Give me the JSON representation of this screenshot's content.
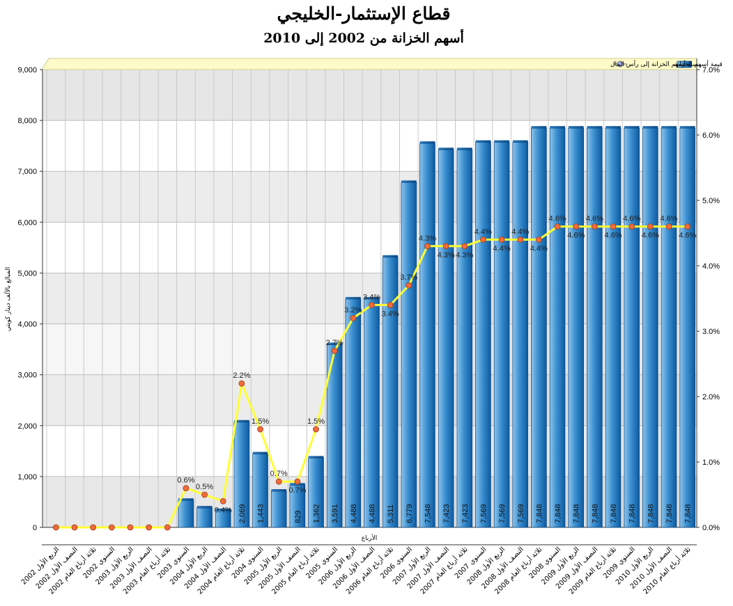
{
  "chart_data": {
    "type": "bar",
    "title": "قطاع الإستثمار-الخليجي",
    "subtitle": "أسهم الخزانة من 2002 إلى 2010",
    "xlabel": "الأرباع",
    "ylabel": "المبالغ بالألف دينار كويتي",
    "ylim": [
      0,
      9000
    ],
    "y2lim": [
      0,
      7.0
    ],
    "y_ticks": [
      "0",
      "1,000",
      "2,000",
      "3,000",
      "4,000",
      "5,000",
      "6,000",
      "7,000",
      "8,000",
      "9,000"
    ],
    "y2_ticks": [
      "0.0%",
      "1.0%",
      "2.0%",
      "3.0%",
      "4.0%",
      "5.0%",
      "6.0%",
      "7.0%"
    ],
    "grid": true,
    "legend_position": "top-right",
    "categories": [
      "الربع الأول 2002",
      "النصف الأول 2002",
      "ثلاثة أرباع العام 2002",
      "السنوي 2002",
      "الربع الأول 2003",
      "النصف الأول 2003",
      "ثلاثة أرباع العام 2003",
      "السنوي 2003",
      "الربع الأول 2004",
      "النصف الأول 2004",
      "ثلاثة أرباع العام 2004",
      "السنوي 2004",
      "الربع الأول 2005",
      "النصف الأول 2005",
      "ثلاثة أرباع العام 2005",
      "السنوي 2005",
      "الربع الأول 2006",
      "النصف الأول 2006",
      "ثلاثة أرباع العام 2006",
      "السنوي 2006",
      "الربع الأول 2007",
      "النصف الأول 2007",
      "ثلاثة أرباع العام 2007",
      "السنوي 2007",
      "الربع الأول 2008",
      "النصف الأول 2008",
      "ثلاثة أرباع العام 2008",
      "السنوي 2008",
      "الربع الأول 2009",
      "النصف الأول 2009",
      "ثلاثة أرباع العام 2009",
      "السنوي 2009",
      "الربع الأول 2010",
      "النصف الأول 2010",
      "ثلاثة أرباع العام 2010"
    ],
    "series": [
      {
        "name": "قيمة أسهم الخزانة",
        "type": "bar",
        "axis": "left",
        "color": "#1f6fb5",
        "values": [
          0,
          0,
          0,
          0,
          0,
          0,
          0,
          530,
          380,
          330,
          2069,
          1443,
          710,
          829,
          1362,
          3591,
          4488,
          4488,
          5311,
          6779,
          7548,
          7423,
          7423,
          7569,
          7569,
          7569,
          7848,
          7848,
          7848,
          7848,
          7848,
          7848,
          7848,
          7848,
          7848
        ],
        "labels": [
          "",
          "",
          "",
          "",
          "",
          "",
          "",
          "",
          "",
          "",
          "2,069",
          "1,443",
          "",
          "829",
          "1,362",
          "3,591",
          "4,488",
          "4,488",
          "5,311",
          "6,779",
          "7,548",
          "7,423",
          "7,423",
          "7,569",
          "7,569",
          "7,569",
          "7,848",
          "7,848",
          "7,848",
          "7,848",
          "7,848",
          "7,848",
          "7,848",
          "7,848",
          "7,848"
        ]
      },
      {
        "name": "نسبة أسهم الخزانة إلى رأس المال",
        "type": "line",
        "axis": "right",
        "color": "#ffff33",
        "values": [
          0,
          0,
          0,
          0,
          0,
          0,
          0,
          0.6,
          0.5,
          0.4,
          2.2,
          1.5,
          0.7,
          0.7,
          1.5,
          2.7,
          3.2,
          3.4,
          3.4,
          3.7,
          4.3,
          4.3,
          4.3,
          4.4,
          4.4,
          4.4,
          4.4,
          4.6,
          4.6,
          4.6,
          4.6,
          4.6,
          4.6,
          4.6,
          4.6
        ],
        "labels": [
          "",
          "",
          "",
          "",
          "",
          "",
          "",
          "0.6%",
          "0.5%",
          "0.4%",
          "2.2%",
          "1.5%",
          "0.7%",
          "0.7%",
          "1.5%",
          "2.7%",
          "3.2%",
          "3.4%",
          "3.4%",
          "3.7%",
          "4.3%",
          "4.3%",
          "4.3%",
          "4.4%",
          "4.4%",
          "4.4%",
          "4.4%",
          "4.6%",
          "4.6%",
          "4.6%",
          "4.6%",
          "4.6%",
          "4.6%",
          "4.6%",
          "4.6%"
        ]
      }
    ]
  }
}
